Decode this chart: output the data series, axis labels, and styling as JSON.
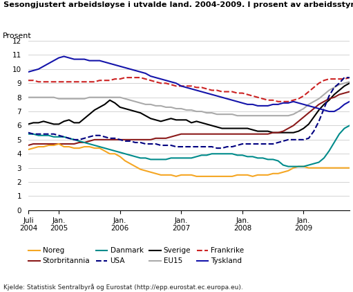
{
  "title": "Sesongjustert arbeidsløyse i utvalde land. 2004-2009. I prosent av arbeidsstyrken",
  "ylabel": "Prosent",
  "source": "Kjelde: Statistisk Sentralbyrå og Eurostat (http://epp.eurostat.ec.europa.eu).",
  "ylim": [
    0,
    12
  ],
  "yticks": [
    0,
    1,
    2,
    3,
    4,
    5,
    6,
    7,
    8,
    9,
    10,
    11,
    12
  ],
  "x_tick_labels": [
    "Juli\n2004",
    "Jan.\n2005",
    "Jan.\n2006",
    "Jan.\n2007",
    "Jan.\n2008",
    "Jan.\n2009"
  ],
  "x_tick_positions": [
    0,
    6,
    18,
    30,
    42,
    54
  ],
  "n_points": 64,
  "series": {
    "Noreg": {
      "color": "#F5A623",
      "linestyle": "solid",
      "linewidth": 1.5,
      "values": [
        4.3,
        4.4,
        4.5,
        4.5,
        4.6,
        4.6,
        4.7,
        4.5,
        4.5,
        4.4,
        4.4,
        4.5,
        4.5,
        4.4,
        4.4,
        4.2,
        4.0,
        4.0,
        3.8,
        3.5,
        3.3,
        3.1,
        2.9,
        2.8,
        2.7,
        2.6,
        2.5,
        2.5,
        2.5,
        2.4,
        2.5,
        2.5,
        2.5,
        2.4,
        2.4,
        2.4,
        2.4,
        2.4,
        2.4,
        2.4,
        2.4,
        2.5,
        2.5,
        2.5,
        2.4,
        2.5,
        2.5,
        2.5,
        2.6,
        2.6,
        2.7,
        2.8,
        3.0,
        3.1,
        3.1,
        3.0,
        3.0,
        3.0,
        3.0,
        3.0,
        3.0,
        3.0,
        3.0,
        3.0
      ]
    },
    "Sverige": {
      "color": "#000000",
      "linestyle": "solid",
      "linewidth": 1.5,
      "values": [
        6.1,
        6.2,
        6.2,
        6.3,
        6.2,
        6.1,
        6.1,
        6.3,
        6.4,
        6.2,
        6.2,
        6.5,
        6.8,
        7.1,
        7.3,
        7.5,
        7.8,
        7.6,
        7.3,
        7.2,
        7.1,
        7.0,
        6.9,
        6.7,
        6.5,
        6.4,
        6.3,
        6.4,
        6.5,
        6.4,
        6.4,
        6.4,
        6.2,
        6.3,
        6.2,
        6.1,
        6.0,
        5.9,
        5.8,
        5.8,
        5.8,
        5.8,
        5.8,
        5.8,
        5.7,
        5.6,
        5.6,
        5.6,
        5.5,
        5.5,
        5.5,
        5.5,
        5.5,
        5.6,
        5.8,
        6.1,
        6.6,
        7.1,
        7.5,
        7.8,
        8.2,
        8.5,
        8.8,
        9.0
      ]
    },
    "Storbritannia": {
      "color": "#8B1A1A",
      "linestyle": "solid",
      "linewidth": 1.5,
      "values": [
        4.6,
        4.7,
        4.7,
        4.7,
        4.7,
        4.7,
        4.7,
        4.7,
        4.7,
        4.7,
        4.8,
        4.8,
        4.9,
        5.0,
        5.0,
        5.0,
        5.0,
        5.0,
        5.0,
        5.0,
        5.0,
        5.0,
        5.0,
        5.0,
        5.0,
        5.1,
        5.1,
        5.1,
        5.2,
        5.3,
        5.4,
        5.4,
        5.4,
        5.4,
        5.4,
        5.4,
        5.4,
        5.4,
        5.4,
        5.4,
        5.4,
        5.4,
        5.4,
        5.4,
        5.4,
        5.4,
        5.4,
        5.4,
        5.5,
        5.5,
        5.6,
        5.8,
        6.0,
        6.3,
        6.6,
        6.9,
        7.2,
        7.5,
        7.7,
        7.9,
        8.0,
        8.2,
        8.3,
        8.4
      ]
    },
    "EU15": {
      "color": "#aaaaaa",
      "linestyle": "solid",
      "linewidth": 1.5,
      "values": [
        8.0,
        8.0,
        8.0,
        8.0,
        8.0,
        8.0,
        7.9,
        7.9,
        7.9,
        7.9,
        7.9,
        7.9,
        8.0,
        8.0,
        8.0,
        8.0,
        8.0,
        8.0,
        8.0,
        7.9,
        7.8,
        7.7,
        7.6,
        7.5,
        7.5,
        7.4,
        7.4,
        7.3,
        7.3,
        7.2,
        7.2,
        7.1,
        7.1,
        7.0,
        7.0,
        6.9,
        6.9,
        6.8,
        6.8,
        6.8,
        6.8,
        6.7,
        6.7,
        6.7,
        6.7,
        6.7,
        6.7,
        6.7,
        6.7,
        6.7,
        6.7,
        6.7,
        6.8,
        7.0,
        7.2,
        7.5,
        7.7,
        7.9,
        8.2,
        8.5,
        8.7,
        8.9,
        9.0,
        9.1
      ]
    },
    "Danmark": {
      "color": "#008B8B",
      "linestyle": "solid",
      "linewidth": 1.5,
      "values": [
        5.4,
        5.4,
        5.3,
        5.3,
        5.3,
        5.2,
        5.2,
        5.2,
        5.1,
        5.0,
        4.9,
        4.8,
        4.7,
        4.6,
        4.5,
        4.4,
        4.3,
        4.2,
        4.1,
        4.0,
        3.9,
        3.8,
        3.7,
        3.7,
        3.6,
        3.6,
        3.6,
        3.6,
        3.7,
        3.7,
        3.7,
        3.7,
        3.7,
        3.8,
        3.9,
        3.9,
        4.0,
        4.0,
        4.0,
        4.0,
        4.0,
        3.9,
        3.9,
        3.8,
        3.8,
        3.7,
        3.7,
        3.6,
        3.6,
        3.5,
        3.2,
        3.1,
        3.1,
        3.1,
        3.1,
        3.2,
        3.3,
        3.4,
        3.7,
        4.2,
        4.8,
        5.4,
        5.8,
        6.0
      ]
    },
    "Frankrike": {
      "color": "#CC2222",
      "linestyle": "dashed",
      "linewidth": 1.5,
      "values": [
        9.2,
        9.2,
        9.1,
        9.1,
        9.1,
        9.1,
        9.1,
        9.1,
        9.1,
        9.1,
        9.1,
        9.1,
        9.1,
        9.1,
        9.2,
        9.2,
        9.2,
        9.3,
        9.3,
        9.4,
        9.4,
        9.4,
        9.4,
        9.3,
        9.2,
        9.1,
        9.0,
        9.0,
        8.9,
        8.8,
        8.8,
        8.8,
        8.8,
        8.7,
        8.7,
        8.6,
        8.5,
        8.5,
        8.4,
        8.4,
        8.4,
        8.3,
        8.3,
        8.2,
        8.1,
        8.0,
        7.9,
        7.8,
        7.8,
        7.7,
        7.7,
        7.7,
        7.8,
        7.9,
        8.1,
        8.4,
        8.7,
        9.0,
        9.2,
        9.3,
        9.3,
        9.3,
        9.3,
        9.4
      ]
    },
    "USA": {
      "color": "#000080",
      "linestyle": "dashed",
      "linewidth": 1.5,
      "values": [
        5.5,
        5.4,
        5.4,
        5.4,
        5.4,
        5.4,
        5.3,
        5.2,
        5.1,
        5.0,
        5.0,
        5.1,
        5.2,
        5.3,
        5.3,
        5.2,
        5.1,
        5.1,
        5.0,
        4.9,
        4.9,
        4.8,
        4.8,
        4.7,
        4.7,
        4.7,
        4.6,
        4.6,
        4.6,
        4.5,
        4.5,
        4.5,
        4.5,
        4.5,
        4.5,
        4.5,
        4.5,
        4.4,
        4.4,
        4.5,
        4.5,
        4.6,
        4.7,
        4.7,
        4.7,
        4.7,
        4.7,
        4.7,
        4.7,
        4.8,
        4.9,
        5.0,
        5.0,
        5.0,
        5.0,
        5.1,
        5.6,
        6.3,
        7.2,
        8.1,
        8.7,
        9.0,
        9.4,
        9.4
      ]
    },
    "Tyskland": {
      "color": "#1414AA",
      "linestyle": "solid",
      "linewidth": 1.5,
      "values": [
        9.8,
        9.9,
        10.0,
        10.2,
        10.4,
        10.6,
        10.8,
        10.9,
        10.8,
        10.7,
        10.7,
        10.7,
        10.6,
        10.6,
        10.6,
        10.5,
        10.4,
        10.3,
        10.2,
        10.1,
        10.0,
        9.9,
        9.8,
        9.7,
        9.5,
        9.4,
        9.3,
        9.2,
        9.1,
        9.0,
        8.8,
        8.7,
        8.6,
        8.5,
        8.4,
        8.3,
        8.2,
        8.1,
        8.0,
        7.9,
        7.8,
        7.7,
        7.6,
        7.5,
        7.5,
        7.4,
        7.4,
        7.4,
        7.5,
        7.5,
        7.6,
        7.6,
        7.7,
        7.6,
        7.5,
        7.4,
        7.3,
        7.2,
        7.1,
        7.0,
        7.0,
        7.2,
        7.5,
        7.7
      ]
    }
  },
  "legend_row1": [
    "Noreg",
    "Storbritannia",
    "Danmark",
    "USA"
  ],
  "legend_row2": [
    "Sverige",
    "EU15",
    "Frankrike",
    "Tyskland"
  ]
}
